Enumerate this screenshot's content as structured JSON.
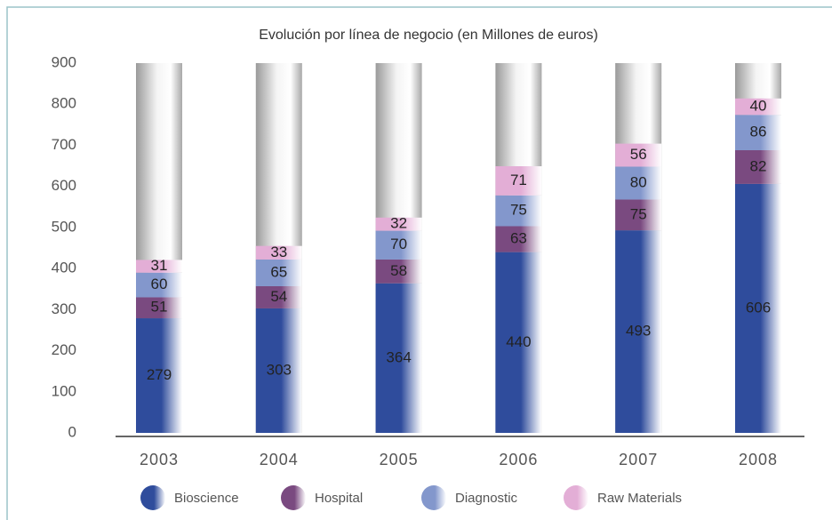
{
  "chart_data": {
    "type": "stacked_bar",
    "title": "Evolución por línea de negocio (en Millones de euros)",
    "categories": [
      "2003",
      "2004",
      "2005",
      "2006",
      "2007",
      "2008"
    ],
    "series": [
      {
        "name": "Bioscience",
        "color": "#2f4c9c",
        "values": [
          279,
          303,
          364,
          440,
          493,
          606
        ]
      },
      {
        "name": "Hospital",
        "color": "#7a4a80",
        "values": [
          51,
          54,
          58,
          63,
          75,
          82
        ]
      },
      {
        "name": "Diagnostic",
        "color": "#8397cc",
        "values": [
          60,
          65,
          70,
          75,
          80,
          86
        ]
      },
      {
        "name": "Raw Materials",
        "color": "#e3aed6",
        "values": [
          31,
          33,
          32,
          71,
          56,
          40
        ]
      }
    ],
    "ylim": [
      0,
      900
    ],
    "yticks": [
      0,
      100,
      200,
      300,
      400,
      500,
      600,
      700,
      800,
      900
    ]
  }
}
